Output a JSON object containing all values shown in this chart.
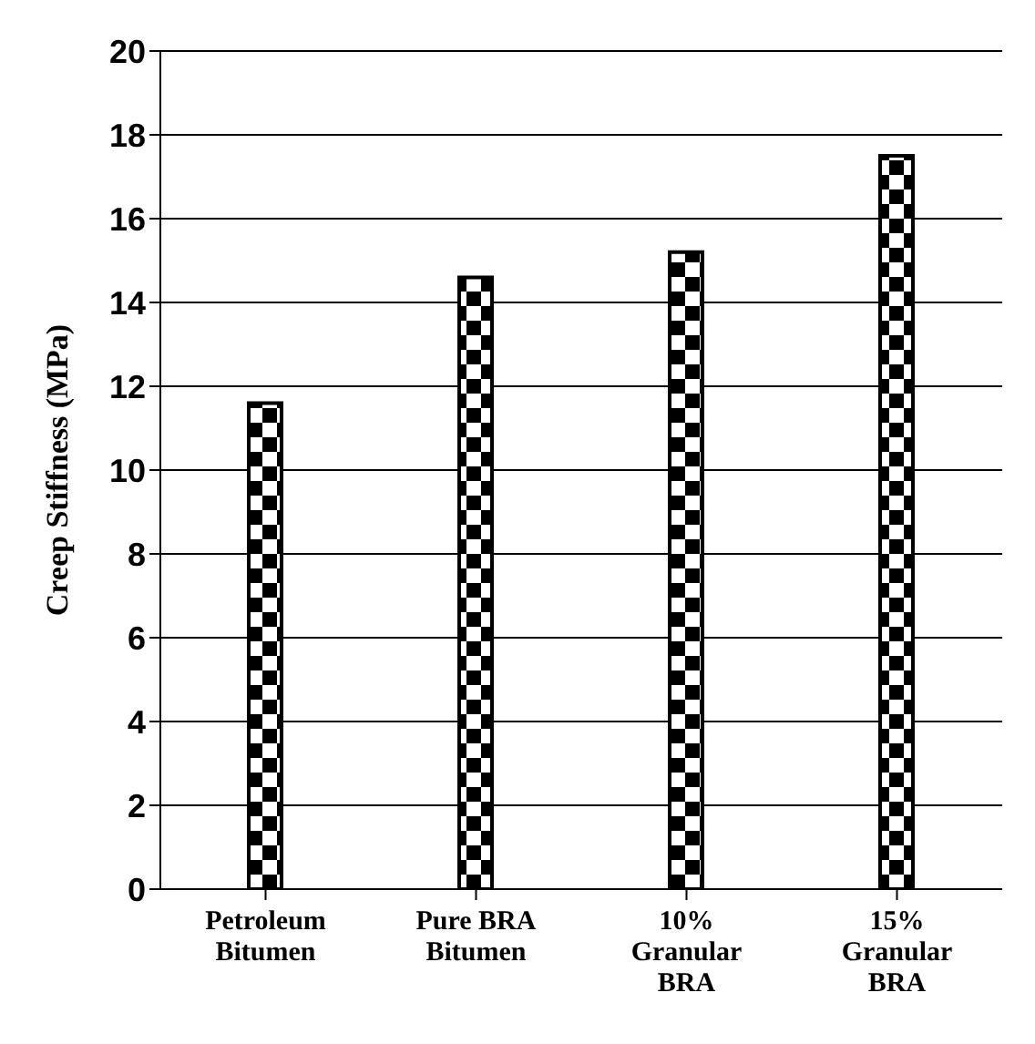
{
  "chart_data": {
    "type": "bar",
    "ylabel": "Creep Stiffness (MPa)",
    "categories": [
      "Petroleum\nBitumen",
      "Pure BRA\nBitumen",
      "10%\nGranular\nBRA",
      "15%\nGranular\nBRA"
    ],
    "values": [
      11.6,
      14.6,
      15.2,
      17.5
    ],
    "color": "#000000",
    "ylim": [
      0,
      20
    ],
    "yticks": [
      0,
      2,
      4,
      6,
      8,
      10,
      12,
      14,
      16,
      18,
      20
    ],
    "grid": "y",
    "legend": false
  }
}
